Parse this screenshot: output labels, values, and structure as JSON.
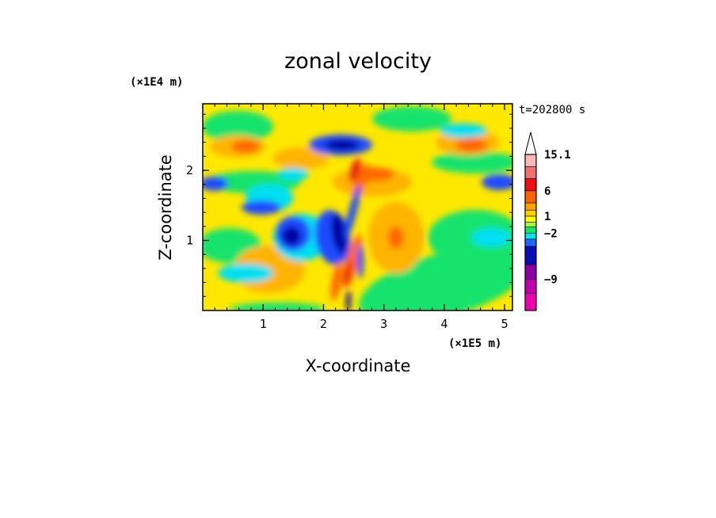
{
  "chart_data": {
    "type": "heatmap",
    "title": "zonal velocity",
    "xlabel": "X-coordinate",
    "ylabel": "Z-coordinate",
    "x_unit": "(×1E5 m)",
    "y_unit": "(×1E4 m)",
    "time_label": "t=202800 s",
    "xlim": [
      0,
      5.13
    ],
    "ylim": [
      0,
      2.95
    ],
    "x_ticks": [
      "1",
      "2",
      "3",
      "4",
      "5"
    ],
    "y_ticks": [
      "1",
      "2"
    ],
    "colorbar": {
      "levels_min_to_max": [
        -15,
        -12,
        -9,
        -6,
        -4,
        -3,
        -2,
        -1,
        0,
        1,
        2,
        3,
        6,
        9,
        12,
        15.1
      ],
      "colors_min_to_max": [
        "#ee00aa",
        "#c000a8",
        "#8a00a0",
        "#0c0cb4",
        "#1e64ff",
        "#00e6e6",
        "#16e36c",
        "#a0ff3c",
        "#ffff00",
        "#ffd000",
        "#ffa000",
        "#ff6000",
        "#ee1010",
        "#f07070",
        "#f8b8b8"
      ],
      "tick_labels": [
        "15.1",
        "6",
        "1",
        "−2",
        "−9"
      ],
      "max_extend_color": "#ffffff"
    },
    "field_colors": {
      "background": "#ffe800",
      "warm": "#ffb400",
      "hot": "#ff6800",
      "green": "#16e36c",
      "cyan": "#00e0f0",
      "blue": "#1e4cff",
      "navy": "#0000a0",
      "red": "#e82010"
    }
  }
}
